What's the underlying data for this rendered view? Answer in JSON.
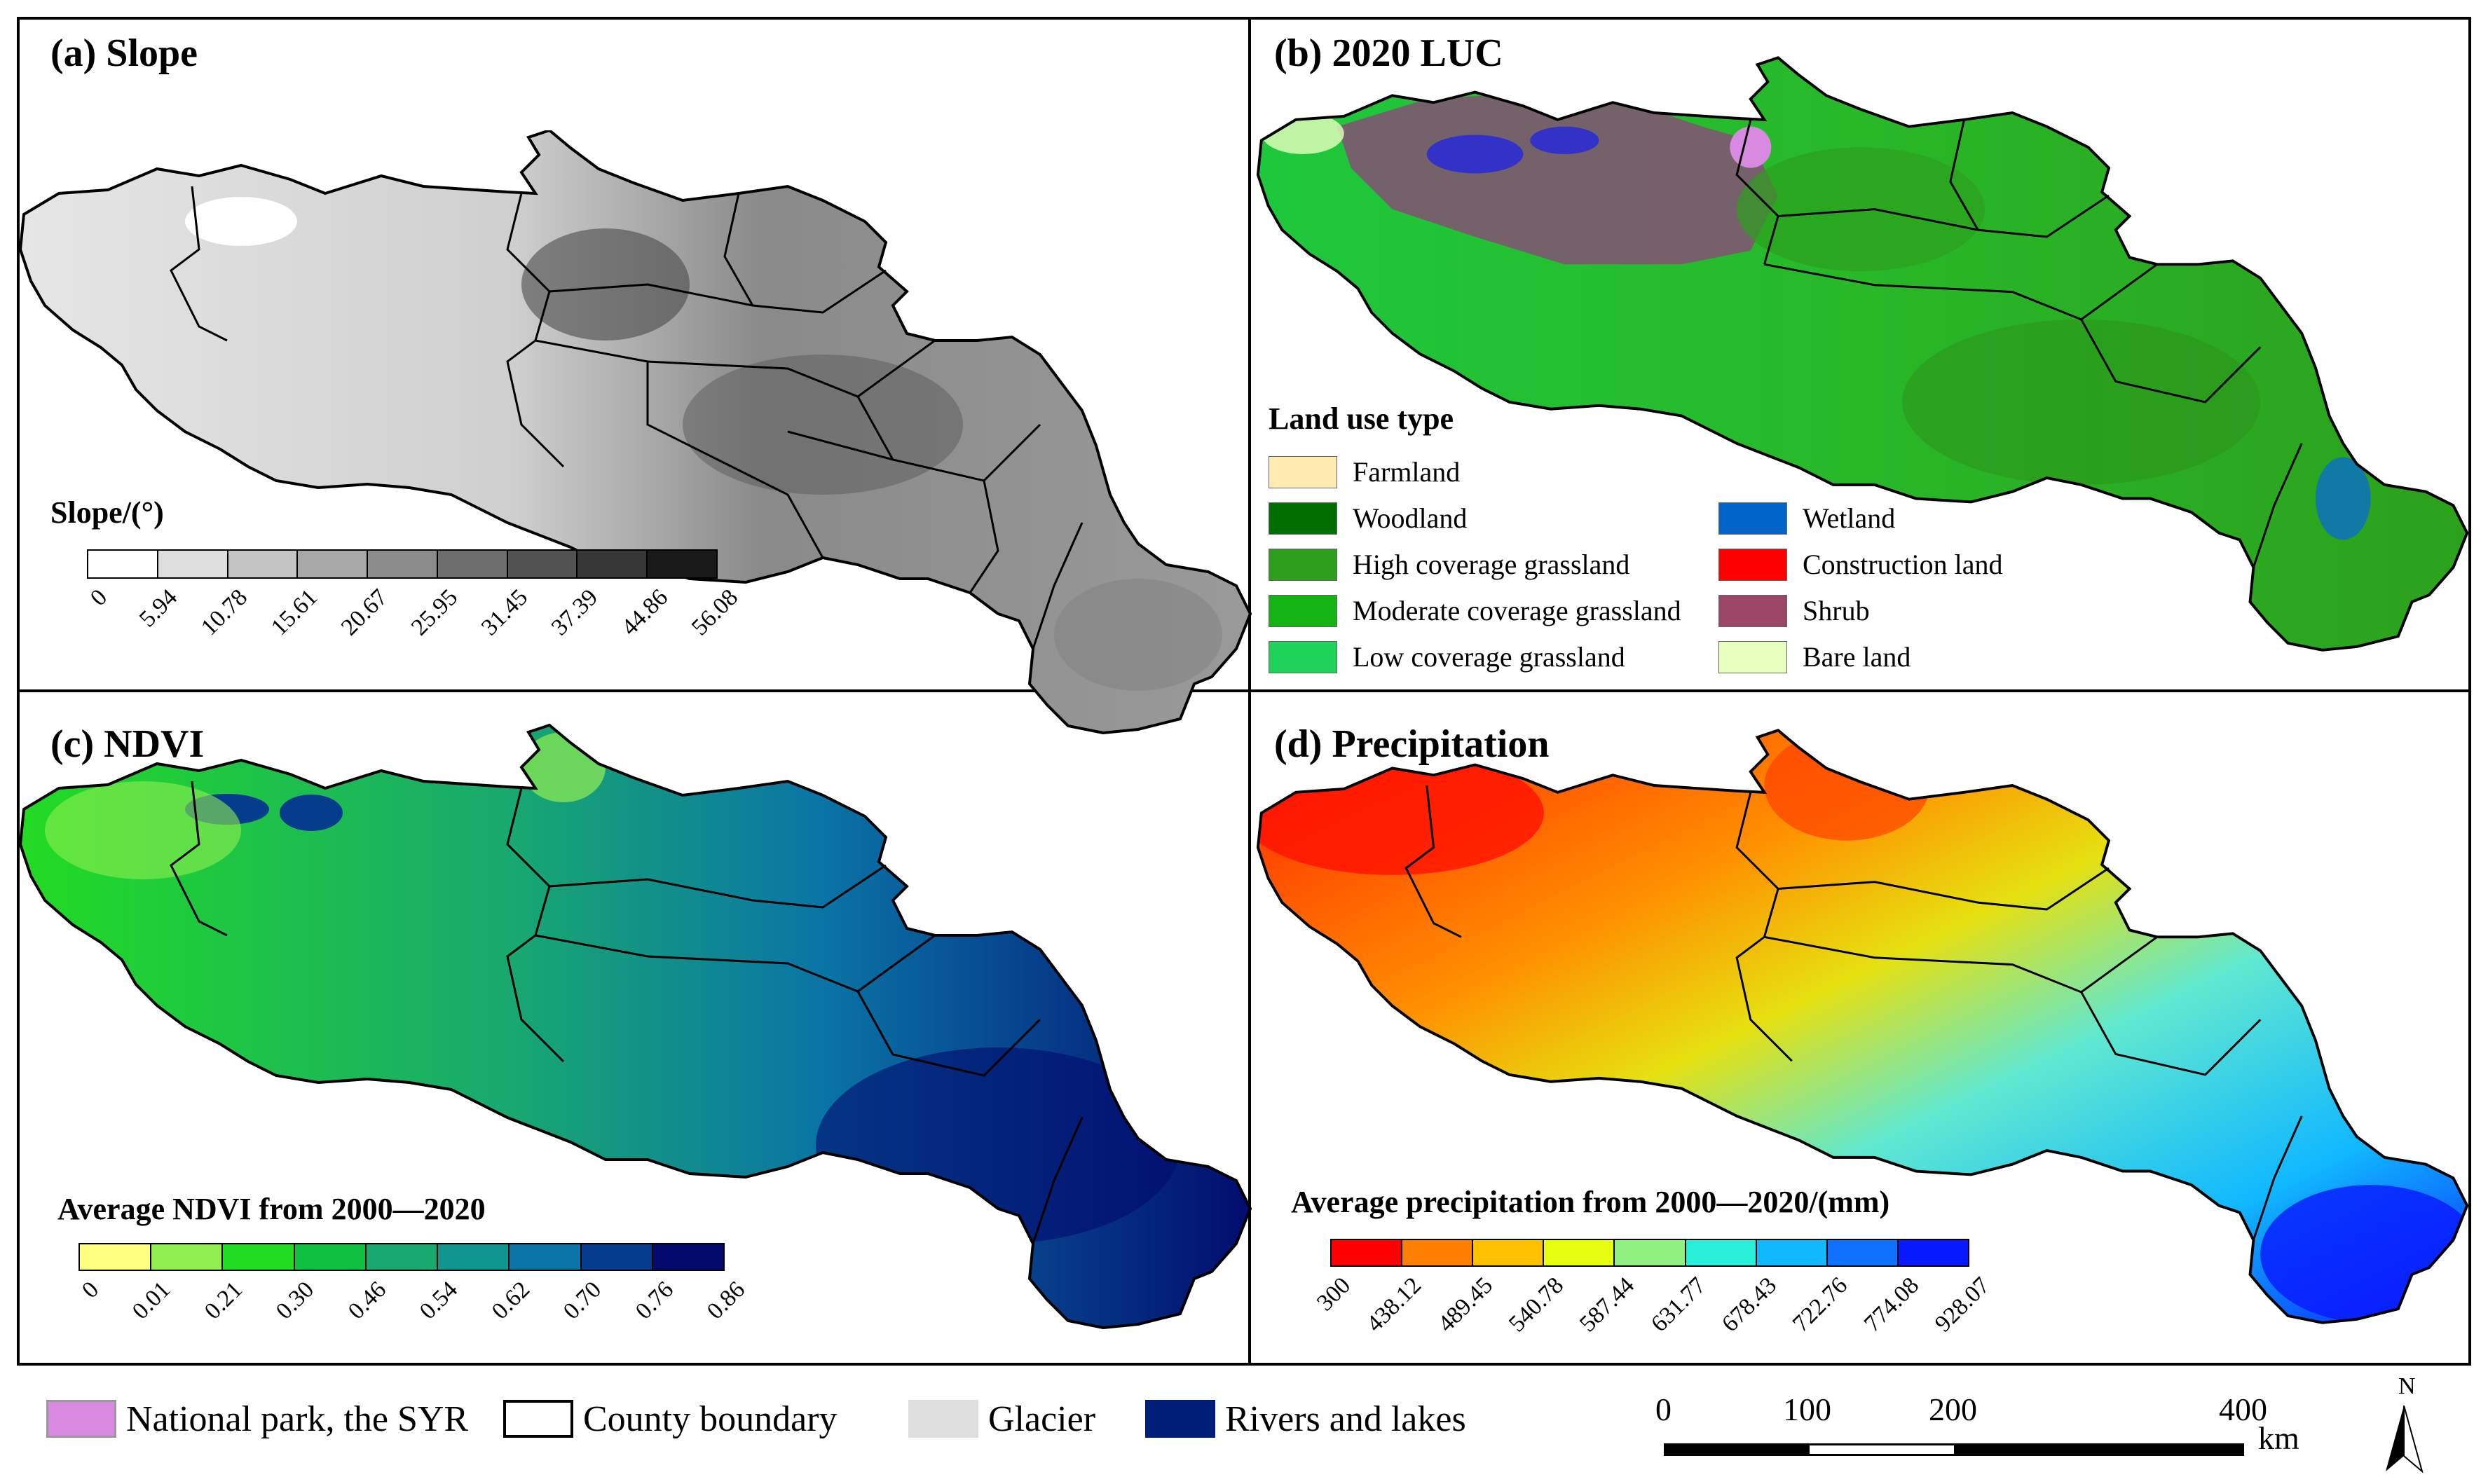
{
  "panels": {
    "a": {
      "title": "(a) Slope",
      "cbar_title": "Slope/(°)",
      "ticks": [
        "0",
        "5.94",
        "10.78",
        "15.61",
        "20.67",
        "25.95",
        "31.45",
        "37.39",
        "44.86",
        "56.08"
      ],
      "colors": [
        "#ffffff",
        "#dedede",
        "#c4c4c4",
        "#a8a8a8",
        "#8c8c8c",
        "#6e6e6e",
        "#525252",
        "#363636",
        "#1a1a1a"
      ]
    },
    "b": {
      "title": "(b) 2020 LUC",
      "legend_title": "Land use type",
      "items": [
        {
          "label": "Farmland",
          "color": "#ffebaf"
        },
        {
          "label": "Woodland",
          "color": "#006e00"
        },
        {
          "label": "High coverage grassland",
          "color": "#2ca01c"
        },
        {
          "label": "Moderate coverage grassland",
          "color": "#14b414"
        },
        {
          "label": "Low coverage grassland",
          "color": "#1ed25a"
        },
        {
          "label": "Wetland",
          "color": "#0064c8"
        },
        {
          "label": "Construction land",
          "color": "#ff0000"
        },
        {
          "label": "Shrub",
          "color": "#9b4664"
        },
        {
          "label": "Bare land",
          "color": "#e6ffbe"
        }
      ]
    },
    "c": {
      "title": "(c) NDVI",
      "cbar_title": "Average NDVI from 2000—2020",
      "ticks": [
        "0",
        "0.01",
        "0.21",
        "0.30",
        "0.46",
        "0.54",
        "0.62",
        "0.70",
        "0.76",
        "0.86"
      ],
      "colors": [
        "#ffff80",
        "#90ee50",
        "#22dc22",
        "#10c040",
        "#18a870",
        "#10968e",
        "#0a74a6",
        "#063c8c",
        "#020a6e"
      ]
    },
    "d": {
      "title": "(d) Precipitation",
      "cbar_title": "Average precipitation from 2000—2020/(mm)",
      "ticks": [
        "300",
        "438.12",
        "489.45",
        "540.78",
        "587.44",
        "631.77",
        "678.43",
        "722.76",
        "774.08",
        "928.07"
      ],
      "colors": [
        "#ff0000",
        "#ff7f00",
        "#ffc000",
        "#e6ff10",
        "#90f080",
        "#28f0d8",
        "#10b8ff",
        "#1070ff",
        "#0818ff"
      ]
    }
  },
  "bottom_legend": [
    {
      "label": "National park, the SYR",
      "color": "#d88ae0",
      "icon": "filled-box"
    },
    {
      "label": "County boundary",
      "color": "#ffffff",
      "icon": "outline-box"
    },
    {
      "label": "Glacier",
      "color": "#dedede",
      "icon": "filled-box"
    },
    {
      "label": "Rivers and lakes",
      "color": "#001e78",
      "icon": "filled-box"
    }
  ],
  "scale": {
    "ticks": [
      "0",
      "100",
      "200",
      "400"
    ],
    "unit": "km"
  },
  "north": "N"
}
